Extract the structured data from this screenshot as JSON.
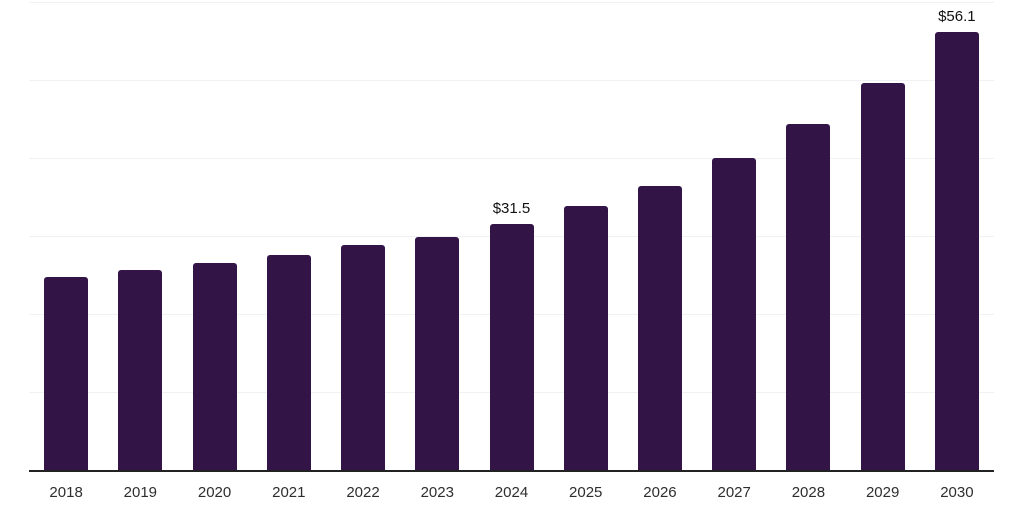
{
  "chart_data": {
    "type": "bar",
    "title": "",
    "xlabel": "",
    "ylabel": "",
    "categories": [
      "2018",
      "2019",
      "2020",
      "2021",
      "2022",
      "2023",
      "2024",
      "2025",
      "2026",
      "2027",
      "2028",
      "2029",
      "2030"
    ],
    "values": [
      24.7,
      25.7,
      26.6,
      27.6,
      28.8,
      29.9,
      31.5,
      33.8,
      36.4,
      40.0,
      44.4,
      49.6,
      56.1
    ],
    "point_labels": [
      "",
      "",
      "",
      "",
      "",
      "",
      "$31.5",
      "",
      "",
      "",
      "",
      "",
      "$56.1"
    ],
    "ylim": [
      0,
      60
    ],
    "y_step": 10,
    "grid": "horizontal",
    "y_tick_labels_visible": false,
    "legend": "none",
    "colors": {
      "bar": "#331447",
      "gridline": "#f1f1f3",
      "axis_line": "#222222",
      "x_tick_label": "#2e2e2e",
      "value_label": "#111111",
      "background": "#ffffff"
    }
  }
}
